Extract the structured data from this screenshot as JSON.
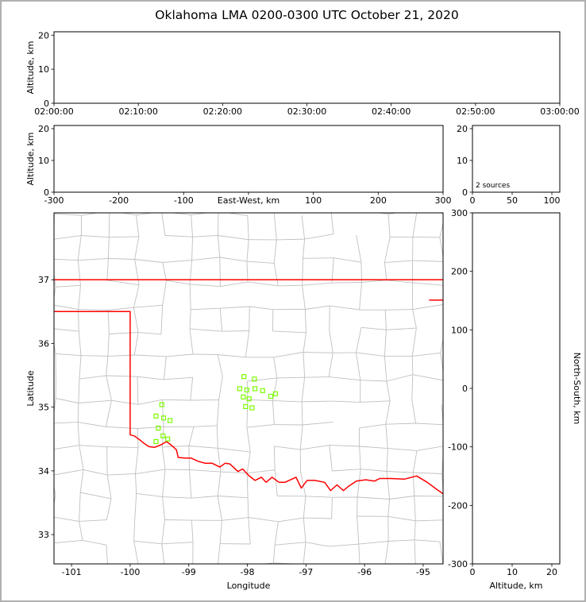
{
  "title": "Oklahoma LMA 0200-0300 UTC October 21, 2020",
  "figure": {
    "background": "#ffffff",
    "frame_color": "#b0b0b0"
  },
  "chart_data": [
    {
      "id": "altitude_vs_time",
      "type": "scatter",
      "ylabel": "Altitude, km",
      "xlim": [
        0,
        3600
      ],
      "ylim": [
        0,
        21
      ],
      "xticks": [
        {
          "v": 0,
          "label": "02:00:00"
        },
        {
          "v": 600,
          "label": "02:10:00"
        },
        {
          "v": 1200,
          "label": "02:20:00"
        },
        {
          "v": 1800,
          "label": "02:30:00"
        },
        {
          "v": 2400,
          "label": "02:40:00"
        },
        {
          "v": 3000,
          "label": "02:50:00"
        },
        {
          "v": 3600,
          "label": "03:00:00"
        }
      ],
      "yticks": [
        {
          "v": 0,
          "label": "0"
        },
        {
          "v": 10,
          "label": "10"
        },
        {
          "v": 20,
          "label": "20"
        }
      ],
      "points": []
    },
    {
      "id": "altitude_vs_eastwest",
      "type": "scatter",
      "ylabel": "Altitude, km",
      "xlabel_inline": "East-West, km",
      "xlim": [
        -300,
        300
      ],
      "ylim": [
        0,
        21
      ],
      "xticks": [
        {
          "v": -300,
          "label": "-300"
        },
        {
          "v": -200,
          "label": "-200"
        },
        {
          "v": -100,
          "label": "-100"
        },
        {
          "v": 0,
          "label": ""
        },
        {
          "v": 100,
          "label": "100"
        },
        {
          "v": 200,
          "label": "200"
        },
        {
          "v": 300,
          "label": "300"
        }
      ],
      "yticks": [
        {
          "v": 0,
          "label": "0"
        },
        {
          "v": 10,
          "label": "10"
        },
        {
          "v": 20,
          "label": "20"
        }
      ],
      "points": []
    },
    {
      "id": "altitude_histogram",
      "type": "histogram",
      "xlim": [
        0,
        110
      ],
      "ylim": [
        0,
        21
      ],
      "xticks": [
        {
          "v": 0,
          "label": "0"
        },
        {
          "v": 50,
          "label": "50"
        },
        {
          "v": 100,
          "label": "100"
        }
      ],
      "yticks": [
        {
          "v": 0,
          "label": "0"
        },
        {
          "v": 10,
          "label": "10"
        },
        {
          "v": 20,
          "label": "20"
        }
      ],
      "annotation": "2 sources",
      "points": []
    },
    {
      "id": "plan_view_map",
      "type": "scatter",
      "xlabel": "Longitude",
      "ylabel": "Latitude",
      "xlim": [
        -101.3,
        -94.66
      ],
      "ylim": [
        32.54,
        38.05
      ],
      "xticks": [
        {
          "v": -101,
          "label": "-101"
        },
        {
          "v": -100,
          "label": "-100"
        },
        {
          "v": -99,
          "label": "-99"
        },
        {
          "v": -98,
          "label": "-98"
        },
        {
          "v": -97,
          "label": "-97"
        },
        {
          "v": -96,
          "label": "-96"
        },
        {
          "v": -95,
          "label": "-95"
        }
      ],
      "yticks": [
        {
          "v": 33,
          "label": "33"
        },
        {
          "v": 34,
          "label": "34"
        },
        {
          "v": 35,
          "label": "35"
        },
        {
          "v": 36,
          "label": "36"
        },
        {
          "v": 37,
          "label": "37"
        }
      ],
      "state_border_color": "#ff0000",
      "county_color": "#c0c0c0",
      "station_color": "#7CFC00",
      "state_borders": [
        [
          [
            -101.3,
            37
          ],
          [
            -94.66,
            37
          ]
        ],
        [
          [
            -101.3,
            36.5
          ],
          [
            -100,
            36.5
          ],
          [
            -100,
            34.563
          ]
        ],
        [
          [
            -100,
            34.563
          ],
          [
            -99.93,
            34.55
          ],
          [
            -99.84,
            34.49
          ],
          [
            -99.76,
            34.43
          ],
          [
            -99.68,
            34.38
          ],
          [
            -99.58,
            34.37
          ],
          [
            -99.47,
            34.41
          ],
          [
            -99.38,
            34.46
          ],
          [
            -99.28,
            34.39
          ],
          [
            -99.21,
            34.33
          ],
          [
            -99.18,
            34.21
          ],
          [
            -99.07,
            34.2
          ],
          [
            -98.96,
            34.2
          ],
          [
            -98.84,
            34.15
          ],
          [
            -98.72,
            34.12
          ],
          [
            -98.6,
            34.12
          ],
          [
            -98.47,
            34.06
          ],
          [
            -98.38,
            34.12
          ],
          [
            -98.3,
            34.11
          ],
          [
            -98.16,
            33.99
          ],
          [
            -98.08,
            34.03
          ],
          [
            -97.98,
            33.93
          ],
          [
            -97.87,
            33.85
          ],
          [
            -97.76,
            33.9
          ],
          [
            -97.68,
            33.82
          ],
          [
            -97.58,
            33.9
          ],
          [
            -97.46,
            33.82
          ],
          [
            -97.36,
            33.82
          ],
          [
            -97.24,
            33.87
          ],
          [
            -97.17,
            33.9
          ],
          [
            -97.08,
            33.73
          ],
          [
            -96.98,
            33.85
          ],
          [
            -96.85,
            33.85
          ],
          [
            -96.68,
            33.82
          ],
          [
            -96.58,
            33.69
          ],
          [
            -96.47,
            33.78
          ],
          [
            -96.36,
            33.69
          ],
          [
            -96.27,
            33.76
          ],
          [
            -96.14,
            33.84
          ],
          [
            -95.98,
            33.86
          ],
          [
            -95.83,
            33.84
          ],
          [
            -95.74,
            33.88
          ],
          [
            -95.55,
            33.88
          ],
          [
            -95.32,
            33.87
          ],
          [
            -95.11,
            33.92
          ],
          [
            -94.93,
            33.82
          ],
          [
            -94.8,
            33.73
          ],
          [
            -94.66,
            33.64
          ]
        ],
        [
          [
            -94.9,
            36.68
          ],
          [
            -94.66,
            36.68
          ]
        ]
      ],
      "stations": [
        [
          -99.46,
          35.04
        ],
        [
          -99.56,
          34.86
        ],
        [
          -99.43,
          34.83
        ],
        [
          -99.32,
          34.79
        ],
        [
          -99.52,
          34.67
        ],
        [
          -99.44,
          34.55
        ],
        [
          -99.56,
          34.46
        ],
        [
          -99.36,
          34.5
        ],
        [
          -98.06,
          35.48
        ],
        [
          -97.88,
          35.44
        ],
        [
          -98.13,
          35.29
        ],
        [
          -98.01,
          35.27
        ],
        [
          -97.87,
          35.29
        ],
        [
          -97.74,
          35.26
        ],
        [
          -98.07,
          35.16
        ],
        [
          -97.97,
          35.13
        ],
        [
          -98.03,
          35.01
        ],
        [
          -97.92,
          34.99
        ],
        [
          -97.6,
          35.17
        ],
        [
          -97.52,
          35.21
        ]
      ],
      "county_grid": {
        "lon0": -101.32,
        "lat0": 32.5,
        "cols": 14,
        "rows": 15,
        "lon_step": 0.475,
        "lat_step": 0.37,
        "jitter": 0.055,
        "keep": 0.8,
        "seed": 987654
      },
      "points": []
    },
    {
      "id": "altitude_vs_northsouth",
      "type": "scatter",
      "xlabel": "Altitude, km",
      "ylabel_right": "North-South, km",
      "xlim": [
        0,
        22
      ],
      "ylim": [
        -300,
        300
      ],
      "xticks": [
        {
          "v": 0,
          "label": "0"
        },
        {
          "v": 10,
          "label": "10"
        },
        {
          "v": 20,
          "label": "20"
        }
      ],
      "yticks": [
        {
          "v": 300,
          "label": "300"
        },
        {
          "v": 200,
          "label": "200"
        },
        {
          "v": 100,
          "label": "100"
        },
        {
          "v": 0,
          "label": "0"
        },
        {
          "v": -100,
          "label": "-100"
        },
        {
          "v": -200,
          "label": "-200"
        },
        {
          "v": -300,
          "label": "-300"
        }
      ],
      "points": []
    }
  ]
}
